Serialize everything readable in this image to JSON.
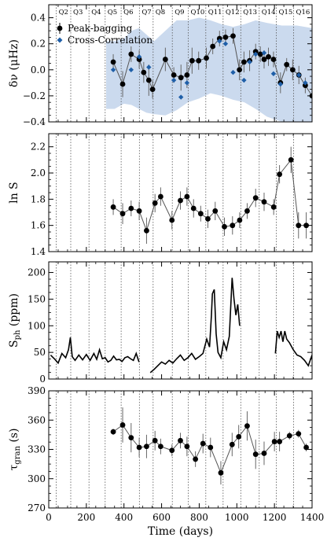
{
  "chart_data": [
    {
      "type": "line",
      "ylabel": "δν (μHz)",
      "xlim": [
        0,
        1400
      ],
      "ylim": [
        -0.4,
        0.5
      ],
      "yticks": [
        -0.4,
        -0.2,
        0.0,
        0.2,
        0.4
      ],
      "ytick_labels": [
        "−0.4",
        "−0.2",
        "0.0",
        "0.2",
        "0.4"
      ],
      "quarters": [
        "Q2",
        "Q3",
        "Q4",
        "Q5",
        "Q6",
        "Q7",
        "Q8",
        "Q9",
        "Q10",
        "Q11",
        "Q12",
        "Q13",
        "Q14",
        "Q15",
        "Q16"
      ],
      "legend_position": "top-left",
      "series": [
        {
          "name": "Peak-bagging",
          "color": "#000000",
          "marker": "circle",
          "x": [
            343,
            393,
            438,
            481,
            505,
            532,
            552,
            620,
            665,
            703,
            735,
            762,
            797,
            838,
            872,
            908,
            940,
            980,
            1014,
            1038,
            1068,
            1100,
            1125,
            1145,
            1168,
            1195,
            1232,
            1265,
            1297,
            1330,
            1364,
            1400
          ],
          "y": [
            0.06,
            -0.11,
            0.12,
            0.08,
            -0.02,
            -0.08,
            -0.15,
            0.08,
            -0.04,
            -0.06,
            -0.04,
            0.07,
            0.07,
            0.09,
            0.18,
            0.24,
            0.25,
            0.26,
            0.0,
            0.06,
            0.07,
            0.14,
            0.12,
            0.08,
            0.1,
            0.08,
            -0.1,
            0.04,
            0.0,
            -0.04,
            -0.12,
            -0.2
          ],
          "yerr": [
            0.06,
            0.1,
            0.06,
            0.07,
            0.08,
            0.12,
            0.07,
            0.09,
            0.06,
            0.1,
            0.1,
            0.1,
            0.07,
            0.08,
            0.06,
            0.06,
            0.06,
            0.06,
            0.08,
            0.08,
            0.08,
            0.06,
            0.06,
            0.07,
            0.07,
            0.06,
            0.08,
            0.05,
            0.08,
            0.07,
            0.06,
            0.07
          ]
        },
        {
          "name": "Cross-Correlation",
          "color": "#1f5fa8",
          "marker": "diamond",
          "x": [
            343,
            438,
            481,
            532,
            665,
            703,
            735,
            908,
            940,
            980,
            1038,
            1068,
            1100,
            1145,
            1195,
            1232,
            1330,
            1364
          ],
          "y": [
            0.0,
            0.0,
            0.1,
            0.02,
            -0.08,
            -0.21,
            -0.1,
            0.22,
            0.2,
            -0.02,
            -0.08,
            0.06,
            0.12,
            0.13,
            -0.03,
            -0.11,
            -0.04,
            -0.1
          ]
        }
      ],
      "band_upper": [
        0.22,
        0.22,
        0.24,
        0.3,
        0.32,
        0.27,
        0.22,
        0.3,
        0.38,
        0.38,
        0.4,
        0.38,
        0.35,
        0.33,
        0.35,
        0.38,
        0.36,
        0.34,
        0.34,
        0.32
      ],
      "band_lower": [
        -0.3,
        -0.3,
        -0.26,
        -0.27,
        -0.3,
        -0.33,
        -0.34,
        -0.35,
        -0.31,
        -0.25,
        -0.22,
        -0.18,
        -0.2,
        -0.23,
        -0.25,
        -0.3,
        -0.36,
        -0.4,
        -0.4,
        -0.4
      ],
      "band_x": [
        305,
        350,
        400,
        440,
        480,
        520,
        560,
        620,
        680,
        740,
        800,
        860,
        920,
        980,
        1040,
        1100,
        1160,
        1240,
        1320,
        1400
      ]
    },
    {
      "type": "line",
      "ylabel": "ln S",
      "xlim": [
        0,
        1400
      ],
      "ylim": [
        1.4,
        2.3
      ],
      "yticks": [
        1.4,
        1.6,
        1.8,
        2.0,
        2.2
      ],
      "ytick_labels": [
        "1.4",
        "1.6",
        "1.8",
        "2.0",
        "2.2"
      ],
      "series": [
        {
          "name": "",
          "color": "#000000",
          "marker": "circle",
          "x": [
            343,
            393,
            438,
            481,
            520,
            565,
            595,
            655,
            700,
            735,
            770,
            808,
            846,
            885,
            934,
            977,
            1015,
            1055,
            1100,
            1145,
            1196,
            1227,
            1288,
            1328,
            1369
          ],
          "y": [
            1.74,
            1.69,
            1.73,
            1.71,
            1.56,
            1.77,
            1.82,
            1.64,
            1.79,
            1.82,
            1.73,
            1.69,
            1.65,
            1.71,
            1.59,
            1.6,
            1.64,
            1.71,
            1.81,
            1.78,
            1.74,
            1.99,
            2.1,
            1.6,
            1.6
          ],
          "yerr": [
            0.06,
            0.08,
            0.06,
            0.07,
            0.1,
            0.07,
            0.07,
            0.07,
            0.07,
            0.07,
            0.07,
            0.06,
            0.07,
            0.07,
            0.07,
            0.07,
            0.06,
            0.06,
            0.07,
            0.07,
            0.06,
            0.07,
            0.1,
            0.1,
            0.1
          ]
        }
      ]
    },
    {
      "type": "line",
      "ylabel": "S_ph (ppm)",
      "xlim": [
        0,
        1400
      ],
      "ylim": [
        0,
        220
      ],
      "yticks": [
        0,
        50,
        100,
        150,
        200
      ],
      "ytick_labels": [
        "0",
        "50",
        "100",
        "150",
        "200"
      ],
      "series": [
        {
          "name": "",
          "color": "#000000",
          "segments": [
            {
              "x": [
                10,
                30,
                50,
                70,
                90,
                105,
                115,
                125,
                140,
                160,
                180,
                200,
                220,
                240,
                255,
                270,
                285,
                300,
                315,
                330,
                345,
                360,
                375,
                390,
                405,
                420,
                435,
                450,
                465,
                480
              ],
              "y": [
                45,
                38,
                30,
                48,
                40,
                55,
                78,
                42,
                35,
                45,
                36,
                46,
                35,
                48,
                37,
                55,
                38,
                40,
                32,
                35,
                43,
                36,
                37,
                33,
                40,
                42,
                38,
                35,
                48,
                32
              ]
            },
            {
              "x": [
                540,
                560,
                580,
                600,
                620,
                640,
                660,
                680,
                700,
                720,
                740,
                760,
                780,
                800,
                820,
                840,
                855,
                865,
                870,
                880,
                890,
                900,
                915,
                930,
                945,
                960,
                975,
                985,
                995,
                1005,
                1015
              ],
              "y": [
                12,
                18,
                25,
                32,
                28,
                35,
                30,
                38,
                45,
                35,
                40,
                48,
                37,
                42,
                48,
                75,
                60,
                120,
                160,
                168,
                85,
                50,
                40,
                70,
                55,
                80,
                190,
                150,
                120,
                140,
                100
              ]
            },
            {
              "x": [
                1205,
                1215,
                1225,
                1235,
                1245,
                1255,
                1265,
                1280,
                1300,
                1320,
                1340,
                1360,
                1380,
                1400
              ],
              "y": [
                48,
                90,
                78,
                90,
                70,
                90,
                75,
                68,
                55,
                45,
                42,
                35,
                25,
                45
              ]
            }
          ]
        }
      ]
    },
    {
      "type": "line",
      "xlabel": "Time (days)",
      "ylabel": "τgran (s)",
      "xlim": [
        0,
        1400
      ],
      "ylim": [
        270,
        390
      ],
      "yticks": [
        270,
        300,
        330,
        360,
        390
      ],
      "ytick_labels": [
        "270",
        "300",
        "330",
        "360",
        "390"
      ],
      "xticks": [
        0,
        200,
        400,
        600,
        800,
        1000,
        1200,
        1400
      ],
      "xtick_labels": [
        "0",
        "200",
        "400",
        "600",
        "800",
        "1000",
        "1200",
        "1400"
      ],
      "series": [
        {
          "name": "",
          "color": "#000000",
          "marker": "circle",
          "x": [
            343,
            393,
            438,
            481,
            520,
            565,
            595,
            655,
            700,
            735,
            780,
            820,
            860,
            915,
            975,
            1010,
            1055,
            1100,
            1145,
            1200,
            1227,
            1280,
            1328,
            1369
          ],
          "y": [
            348,
            355,
            342,
            332,
            333,
            339,
            333,
            329,
            339,
            333,
            320,
            336,
            332,
            306,
            335,
            343,
            354,
            325,
            326,
            338,
            338,
            344,
            346,
            332
          ],
          "yerr": [
            3,
            18,
            15,
            10,
            12,
            10,
            8,
            6,
            8,
            10,
            8,
            10,
            10,
            12,
            12,
            12,
            15,
            15,
            12,
            10,
            10,
            4,
            4,
            4
          ]
        }
      ]
    }
  ]
}
